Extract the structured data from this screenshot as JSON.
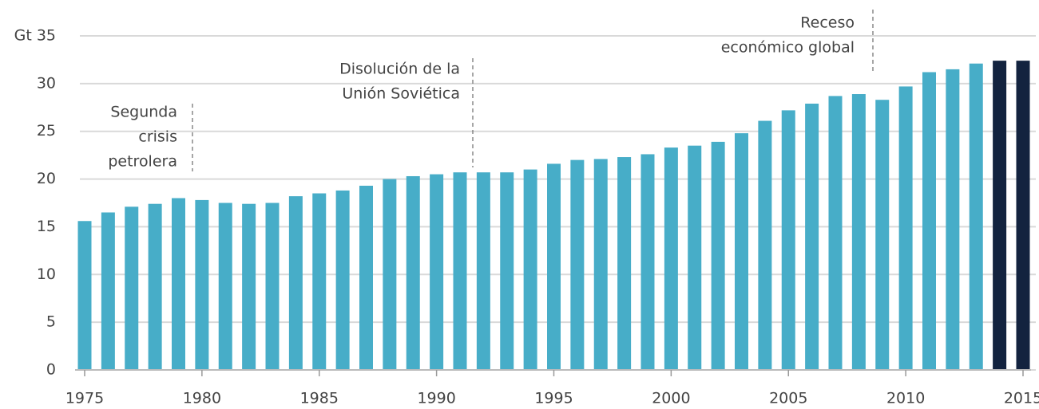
{
  "chart_data": {
    "type": "bar",
    "x": [
      1975,
      1976,
      1977,
      1978,
      1979,
      1980,
      1981,
      1982,
      1983,
      1984,
      1985,
      1986,
      1987,
      1988,
      1989,
      1990,
      1991,
      1992,
      1993,
      1994,
      1995,
      1996,
      1997,
      1998,
      1999,
      2000,
      2001,
      2002,
      2003,
      2004,
      2005,
      2006,
      2007,
      2008,
      2009,
      2010,
      2011,
      2012,
      2013,
      2014,
      2015
    ],
    "values": [
      15.6,
      16.5,
      17.1,
      17.4,
      18.0,
      17.8,
      17.5,
      17.4,
      17.5,
      18.2,
      18.5,
      18.8,
      19.3,
      20.0,
      20.3,
      20.5,
      20.7,
      20.7,
      20.7,
      21.0,
      21.6,
      22.0,
      22.1,
      22.3,
      22.6,
      23.3,
      23.5,
      23.9,
      24.8,
      26.1,
      27.2,
      27.9,
      28.7,
      28.9,
      28.3,
      29.7,
      31.2,
      31.5,
      32.1,
      32.4,
      32.4
    ],
    "colors": [
      "#47adc8",
      "#47adc8",
      "#47adc8",
      "#47adc8",
      "#47adc8",
      "#47adc8",
      "#47adc8",
      "#47adc8",
      "#47adc8",
      "#47adc8",
      "#47adc8",
      "#47adc8",
      "#47adc8",
      "#47adc8",
      "#47adc8",
      "#47adc8",
      "#47adc8",
      "#47adc8",
      "#47adc8",
      "#47adc8",
      "#47adc8",
      "#47adc8",
      "#47adc8",
      "#47adc8",
      "#47adc8",
      "#47adc8",
      "#47adc8",
      "#47adc8",
      "#47adc8",
      "#47adc8",
      "#47adc8",
      "#47adc8",
      "#47adc8",
      "#47adc8",
      "#47adc8",
      "#47adc8",
      "#47adc8",
      "#47adc8",
      "#47adc8",
      "#13233f",
      "#13233f"
    ],
    "xlim": [
      1975,
      2015
    ],
    "xticks": [
      1975,
      1980,
      1985,
      1990,
      1995,
      2000,
      2005,
      2010,
      2015
    ],
    "ylim": [
      0,
      35
    ],
    "yticks": [
      0,
      5,
      10,
      15,
      20,
      25,
      30,
      {
        "value": 35,
        "label": "Gt 35"
      }
    ],
    "grid": true,
    "annotations": [
      {
        "lines": [
          "Segunda",
          "crisis",
          "petrolera"
        ]
      },
      {
        "lines": [
          "Disolución de la",
          "Unión Soviética"
        ]
      },
      {
        "lines": [
          "Receso",
          "económico global"
        ]
      }
    ]
  }
}
